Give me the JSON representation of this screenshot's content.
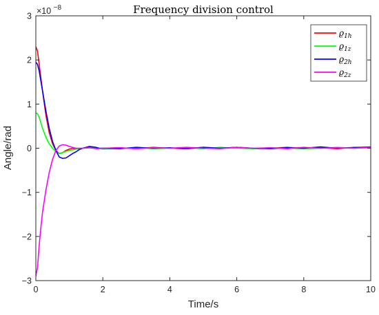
{
  "chart_data": {
    "type": "line",
    "title": "Frequency division control",
    "xlabel": "Time/s",
    "ylabel": "Angle/rad",
    "y_exponent_label": "×10",
    "y_exponent_value": "−8",
    "xlim": [
      0,
      10
    ],
    "ylim": [
      -3,
      3
    ],
    "x_ticks": [
      0,
      2,
      4,
      6,
      8,
      10
    ],
    "x_tick_labels": [
      "0",
      "2",
      "4",
      "6",
      "8",
      "10"
    ],
    "y_ticks": [
      -3,
      -2,
      -1,
      0,
      1,
      2,
      3
    ],
    "y_tick_labels": [
      "−3",
      "−2",
      "−1",
      "0",
      "1",
      "2",
      "3"
    ],
    "grid": false,
    "legend_position": "top-right",
    "series": [
      {
        "name": "ϱ1h",
        "name_base": "ϱ",
        "name_sub": "1h",
        "color": "#ff0000",
        "x": [
          0,
          0.05,
          0.1,
          0.2,
          0.3,
          0.4,
          0.5,
          0.6,
          0.7,
          0.8,
          0.9,
          1.0,
          1.1,
          1.2,
          1.4,
          1.6,
          1.8,
          2.0,
          2.5,
          3.0,
          3.5,
          4.0,
          4.5,
          5.0,
          5.5,
          6.0,
          6.5,
          7.0,
          7.5,
          8.0,
          8.5,
          9.0,
          9.5,
          10.0
        ],
        "y": [
          2.3,
          2.2,
          1.9,
          1.3,
          0.75,
          0.35,
          0.1,
          -0.05,
          -0.12,
          -0.1,
          -0.05,
          -0.02,
          0.0,
          -0.02,
          0.0,
          0.02,
          -0.01,
          0.0,
          0.01,
          -0.01,
          0.02,
          0.0,
          -0.01,
          0.02,
          0.0,
          0.02,
          -0.01,
          0.0,
          0.02,
          0.0,
          0.01,
          -0.01,
          0.02,
          0.02
        ]
      },
      {
        "name": "ϱ1z",
        "name_base": "ϱ",
        "name_sub": "1z",
        "color": "#00ff00",
        "x": [
          0,
          0.05,
          0.1,
          0.2,
          0.3,
          0.4,
          0.5,
          0.6,
          0.7,
          0.8,
          0.9,
          1.0,
          1.2,
          1.4,
          1.6,
          1.8,
          2.0,
          2.5,
          3.0,
          3.5,
          4.0,
          4.5,
          5.0,
          5.5,
          6.0,
          6.5,
          7.0,
          7.5,
          8.0,
          8.5,
          9.0,
          9.5,
          10.0
        ],
        "y": [
          0.8,
          0.78,
          0.7,
          0.45,
          0.25,
          0.1,
          0.0,
          -0.08,
          -0.12,
          -0.1,
          -0.07,
          -0.05,
          -0.02,
          0.0,
          0.01,
          0.0,
          -0.02,
          0.0,
          0.01,
          -0.01,
          0.0,
          0.01,
          -0.01,
          0.02,
          0.0,
          -0.01,
          0.01,
          0.0,
          -0.01,
          0.0,
          0.02,
          0.0,
          0.01
        ]
      },
      {
        "name": "ϱ2h",
        "name_base": "ϱ",
        "name_sub": "2h",
        "color": "#0000ff",
        "x": [
          0,
          0.05,
          0.1,
          0.2,
          0.3,
          0.4,
          0.5,
          0.6,
          0.7,
          0.8,
          0.9,
          1.0,
          1.1,
          1.2,
          1.3,
          1.4,
          1.5,
          1.6,
          1.7,
          1.8,
          1.9,
          2.0,
          2.5,
          3.0,
          3.5,
          4.0,
          4.5,
          5.0,
          5.5,
          6.0,
          6.5,
          7.0,
          7.5,
          8.0,
          8.5,
          9.0,
          9.5,
          10.0
        ],
        "y": [
          1.95,
          1.9,
          1.75,
          1.3,
          0.85,
          0.45,
          0.15,
          -0.05,
          -0.2,
          -0.23,
          -0.22,
          -0.17,
          -0.12,
          -0.08,
          -0.03,
          0.0,
          0.02,
          0.04,
          0.03,
          0.02,
          0.0,
          0.0,
          -0.01,
          0.02,
          0.0,
          0.01,
          -0.01,
          0.02,
          0.0,
          0.02,
          0.0,
          -0.01,
          0.01,
          0.0,
          0.03,
          0.0,
          0.01,
          0.03
        ]
      },
      {
        "name": "ϱ2z",
        "name_base": "ϱ",
        "name_sub": "2z",
        "color": "#ff00ff",
        "x": [
          0,
          0.05,
          0.1,
          0.15,
          0.2,
          0.3,
          0.4,
          0.5,
          0.6,
          0.7,
          0.8,
          0.9,
          1.0,
          1.1,
          1.2,
          1.4,
          1.6,
          1.8,
          2.0,
          2.5,
          3.0,
          3.5,
          4.0,
          4.5,
          5.0,
          5.5,
          6.0,
          6.5,
          7.0,
          7.5,
          8.0,
          8.5,
          9.0,
          9.5,
          10.0
        ],
        "y": [
          -2.9,
          -2.7,
          -2.2,
          -1.8,
          -1.45,
          -0.95,
          -0.55,
          -0.25,
          -0.05,
          0.05,
          0.08,
          0.07,
          0.04,
          0.02,
          0.0,
          0.0,
          0.01,
          -0.01,
          0.0,
          0.01,
          -0.01,
          0.01,
          0.0,
          0.02,
          0.0,
          -0.01,
          0.02,
          0.0,
          0.01,
          -0.01,
          0.02,
          0.0,
          0.01,
          0.0,
          0.02
        ]
      }
    ]
  }
}
